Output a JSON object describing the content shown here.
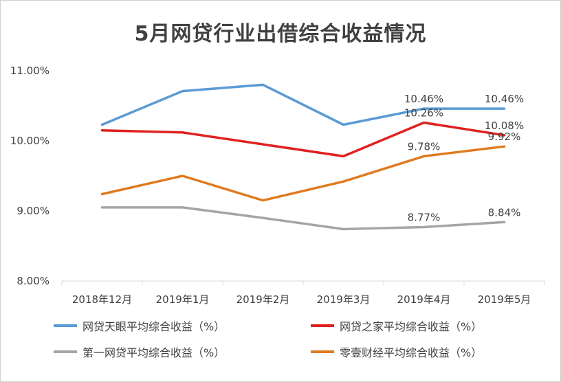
{
  "chart_data": {
    "type": "line",
    "title": "5月网贷行业出借综合收益情况",
    "xlabel": "",
    "ylabel": "",
    "categories": [
      "2018年12月",
      "2019年1月",
      "2019年2月",
      "2019年3月",
      "2019年4月",
      "2019年5月"
    ],
    "ylim": [
      8.0,
      11.0
    ],
    "yticks": [
      "8.00%",
      "9.00%",
      "10.00%",
      "11.00%"
    ],
    "ytick_values": [
      8.0,
      9.0,
      10.0,
      11.0
    ],
    "grid": false,
    "legend_position": "bottom",
    "series": [
      {
        "name": "网贷天眼平均综合收益（%）",
        "color": "#5b9bd5",
        "values": [
          10.23,
          10.71,
          10.8,
          10.23,
          10.46,
          10.46
        ],
        "labels": [
          "",
          "",
          "",
          "",
          "10.46%",
          "10.46%"
        ]
      },
      {
        "name": "网贷之家平均综合收益（%）",
        "color": "#e02020",
        "values": [
          10.15,
          10.12,
          9.95,
          9.78,
          10.26,
          10.08
        ],
        "labels": [
          "",
          "",
          "",
          "",
          "10.26%",
          "10.08%"
        ]
      },
      {
        "name": "第一网贷平均综合收益（%）",
        "color": "#a5a5a5",
        "values": [
          9.05,
          9.05,
          8.9,
          8.74,
          8.77,
          8.84
        ],
        "labels": [
          "",
          "",
          "",
          "",
          "8.77%",
          "8.84%"
        ]
      },
      {
        "name": "零壹财经平均综合收益（%）",
        "color": "#e07a1f",
        "values": [
          9.24,
          9.5,
          9.15,
          9.42,
          9.78,
          9.92
        ],
        "labels": [
          "",
          "",
          "",
          "",
          "9.78%",
          "9.92%"
        ]
      }
    ]
  }
}
